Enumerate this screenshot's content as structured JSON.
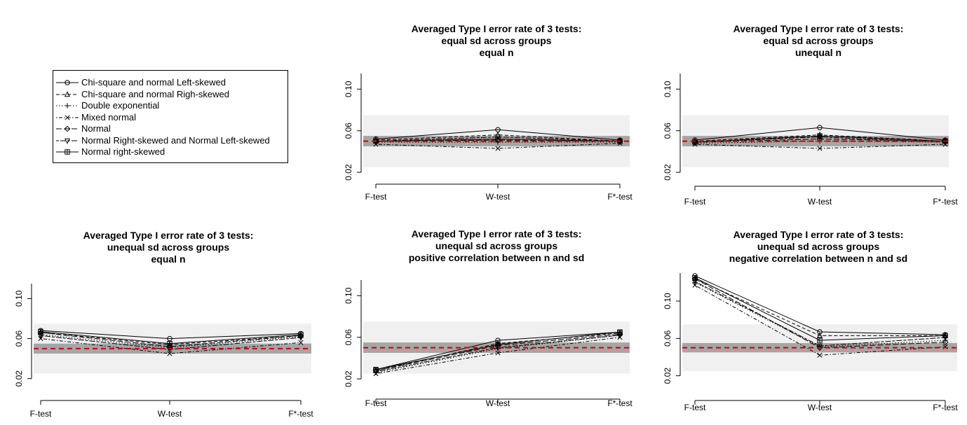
{
  "legend": {
    "entries": [
      {
        "label": "Chi-square and normal Left-skewed",
        "marker": "circle",
        "dash": "solid"
      },
      {
        "label": "Chi-square and normal Righ-skewed",
        "marker": "triangle",
        "dash": "dashed"
      },
      {
        "label": "Double exponential",
        "marker": "plus",
        "dash": "dotted"
      },
      {
        "label": "Mixed normal",
        "marker": "cross",
        "dash": "dotdash"
      },
      {
        "label": "Normal",
        "marker": "diamond",
        "dash": "longdash"
      },
      {
        "label": "Normal Right-skewed and Normal Left-skewed",
        "marker": "invtriangle",
        "dash": "twodash"
      },
      {
        "label": "Normal right-skewed",
        "marker": "square",
        "dash": "solid"
      }
    ]
  },
  "colors": {
    "reference_line": "#cc0000",
    "outer_band": "#f0f0f0",
    "inner_band": "#a6a6a6",
    "series": "#000000"
  },
  "chart_data": [
    {
      "id": "equal-sd-equal-n",
      "type": "line",
      "title": [
        "Averaged Type I error rate of 3 tests:",
        "equal sd across groups",
        "equal n"
      ],
      "categories": [
        "F-test",
        "W-test",
        "F*-test"
      ],
      "yticks": [
        0.02,
        0.06,
        0.1
      ],
      "ylim": [
        0.01,
        0.115
      ],
      "reference": 0.05,
      "bands": {
        "outer": [
          0.025,
          0.075
        ],
        "inner": [
          0.045,
          0.055
        ]
      },
      "series": [
        {
          "name": "Chi-square and normal Left-skewed",
          "values": [
            0.052,
            0.061,
            0.051
          ]
        },
        {
          "name": "Chi-square and normal Righ-skewed",
          "values": [
            0.051,
            0.056,
            0.05
          ]
        },
        {
          "name": "Double exponential",
          "values": [
            0.049,
            0.049,
            0.049
          ]
        },
        {
          "name": "Mixed normal",
          "values": [
            0.047,
            0.043,
            0.048
          ]
        },
        {
          "name": "Normal",
          "values": [
            0.05,
            0.051,
            0.05
          ]
        },
        {
          "name": "Normal Right-skewed and Normal Left-skewed",
          "values": [
            0.05,
            0.054,
            0.05
          ]
        },
        {
          "name": "Normal right-skewed",
          "values": [
            0.05,
            0.052,
            0.05
          ]
        }
      ]
    },
    {
      "id": "equal-sd-unequal-n",
      "type": "line",
      "title": [
        "Averaged Type I error rate of 3 tests:",
        "equal sd across groups",
        "unequal n"
      ],
      "categories": [
        "F-test",
        "W-test",
        "F*-test"
      ],
      "yticks": [
        0.02,
        0.06,
        0.1
      ],
      "ylim": [
        0.01,
        0.115
      ],
      "reference": 0.05,
      "bands": {
        "outer": [
          0.025,
          0.075
        ],
        "inner": [
          0.045,
          0.055
        ]
      },
      "series": [
        {
          "name": "Chi-square and normal Left-skewed",
          "values": [
            0.051,
            0.063,
            0.051
          ]
        },
        {
          "name": "Chi-square and normal Righ-skewed",
          "values": [
            0.05,
            0.056,
            0.05
          ]
        },
        {
          "name": "Double exponential",
          "values": [
            0.048,
            0.05,
            0.049
          ]
        },
        {
          "name": "Mixed normal",
          "values": [
            0.047,
            0.043,
            0.047
          ]
        },
        {
          "name": "Normal",
          "values": [
            0.049,
            0.052,
            0.05
          ]
        },
        {
          "name": "Normal Right-skewed and Normal Left-skewed",
          "values": [
            0.049,
            0.054,
            0.049
          ]
        },
        {
          "name": "Normal right-skewed",
          "values": [
            0.049,
            0.055,
            0.05
          ]
        }
      ]
    },
    {
      "id": "unequal-sd-equal-n",
      "type": "line",
      "title": [
        "Averaged Type I error rate of 3 tests:",
        "unequal sd across groups",
        "equal n"
      ],
      "categories": [
        "F-test",
        "W-test",
        "F*-test"
      ],
      "yticks": [
        0.02,
        0.06,
        0.1
      ],
      "ylim": [
        0.01,
        0.115
      ],
      "reference": 0.05,
      "bands": {
        "outer": [
          0.025,
          0.075
        ],
        "inner": [
          0.045,
          0.055
        ]
      },
      "series": [
        {
          "name": "Chi-square and normal Left-skewed",
          "values": [
            0.068,
            0.06,
            0.065
          ]
        },
        {
          "name": "Chi-square and normal Righ-skewed",
          "values": [
            0.066,
            0.054,
            0.063
          ]
        },
        {
          "name": "Double exponential",
          "values": [
            0.064,
            0.051,
            0.062
          ]
        },
        {
          "name": "Mixed normal",
          "values": [
            0.06,
            0.045,
            0.056
          ]
        },
        {
          "name": "Normal",
          "values": [
            0.066,
            0.052,
            0.063
          ]
        },
        {
          "name": "Normal Right-skewed and Normal Left-skewed",
          "values": [
            0.063,
            0.049,
            0.061
          ]
        },
        {
          "name": "Normal right-skewed",
          "values": [
            0.067,
            0.055,
            0.064
          ]
        }
      ]
    },
    {
      "id": "unequal-sd-positive-correlation",
      "type": "line",
      "title": [
        "Averaged Type I error rate of 3 tests:",
        "unequal sd across groups",
        "positive correlation between n and sd"
      ],
      "categories": [
        "F-test",
        "W-test",
        "F*-test"
      ],
      "yticks": [
        0.02,
        0.06,
        0.1
      ],
      "ylim": [
        0.01,
        0.115
      ],
      "reference": 0.05,
      "bands": {
        "outer": [
          0.025,
          0.075
        ],
        "inner": [
          0.045,
          0.055
        ]
      },
      "series": [
        {
          "name": "Chi-square and normal Left-skewed",
          "values": [
            0.029,
            0.057,
            0.065
          ]
        },
        {
          "name": "Chi-square and normal Righ-skewed",
          "values": [
            0.028,
            0.054,
            0.064
          ]
        },
        {
          "name": "Double exponential",
          "values": [
            0.026,
            0.049,
            0.062
          ]
        },
        {
          "name": "Mixed normal",
          "values": [
            0.025,
            0.045,
            0.06
          ]
        },
        {
          "name": "Normal",
          "values": [
            0.028,
            0.052,
            0.063
          ]
        },
        {
          "name": "Normal Right-skewed and Normal Left-skewed",
          "values": [
            0.027,
            0.05,
            0.062
          ]
        },
        {
          "name": "Normal right-skewed",
          "values": [
            0.029,
            0.053,
            0.065
          ]
        }
      ]
    },
    {
      "id": "unequal-sd-negative-correlation",
      "type": "line",
      "title": [
        "Averaged Type I error rate of 3 tests:",
        "unequal sd across groups",
        "negative correlation between n and sd"
      ],
      "categories": [
        "F-test",
        "W-test",
        "F*-test"
      ],
      "yticks": [
        0.02,
        0.06,
        0.1
      ],
      "ylim": [
        0.01,
        0.13
      ],
      "reference": 0.05,
      "bands": {
        "outer": [
          0.025,
          0.075
        ],
        "inner": [
          0.045,
          0.055
        ]
      },
      "series": [
        {
          "name": "Chi-square and normal Left-skewed",
          "values": [
            0.127,
            0.067,
            0.064
          ]
        },
        {
          "name": "Chi-square and normal Righ-skewed",
          "values": [
            0.124,
            0.063,
            0.063
          ]
        },
        {
          "name": "Double exponential",
          "values": [
            0.12,
            0.051,
            0.058
          ]
        },
        {
          "name": "Mixed normal",
          "values": [
            0.117,
            0.042,
            0.051
          ]
        },
        {
          "name": "Normal",
          "values": [
            0.124,
            0.05,
            0.056
          ]
        },
        {
          "name": "Normal Right-skewed and Normal Left-skewed",
          "values": [
            0.121,
            0.052,
            0.061
          ]
        },
        {
          "name": "Normal right-skewed",
          "values": [
            0.125,
            0.058,
            0.063
          ]
        }
      ]
    }
  ]
}
